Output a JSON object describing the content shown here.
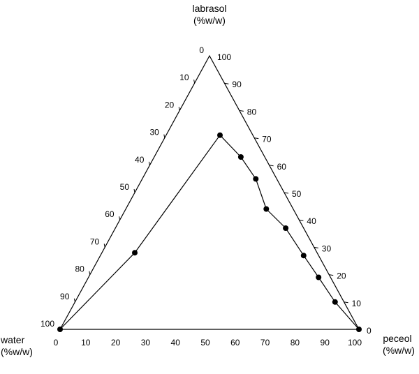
{
  "chart_data": {
    "type": "scatter",
    "subtype": "ternary",
    "title": "",
    "axes": {
      "top": {
        "component": "labrasol",
        "label_line1": "labrasol",
        "label_line2": "(%w/w)"
      },
      "left": {
        "component": "water",
        "label_line1": "water",
        "label_line2": "(%w/w)"
      },
      "right": {
        "component": "peceol",
        "label_line1": "peceol",
        "label_line2": "(%w/w)"
      }
    },
    "ticks": {
      "peceol": [
        "0",
        "10",
        "20",
        "30",
        "40",
        "50",
        "60",
        "70",
        "80",
        "90",
        "100"
      ],
      "labrasol": [
        "0",
        "10",
        "20",
        "30",
        "40",
        "50",
        "60",
        "70",
        "80",
        "90",
        "100"
      ],
      "water": [
        "0",
        "10",
        "20",
        "30",
        "40",
        "50",
        "60",
        "70",
        "80",
        "90",
        "100"
      ]
    },
    "series": [
      {
        "marker": "filled-circle",
        "line": true,
        "points": [
          {
            "peceol": 0,
            "labrasol": 0,
            "water": 100
          },
          {
            "peceol": 11,
            "labrasol": 28,
            "water": 61
          },
          {
            "peceol": 18,
            "labrasol": 71,
            "water": 11
          },
          {
            "peceol": 29,
            "labrasol": 63,
            "water": 8
          },
          {
            "peceol": 38,
            "labrasol": 55,
            "water": 7
          },
          {
            "peceol": 47,
            "labrasol": 44,
            "water": 9
          },
          {
            "peceol": 57,
            "labrasol": 37,
            "water": 6
          },
          {
            "peceol": 68,
            "labrasol": 27,
            "water": 5
          },
          {
            "peceol": 77,
            "labrasol": 19,
            "water": 4
          },
          {
            "peceol": 87,
            "labrasol": 10,
            "water": 3
          },
          {
            "peceol": 100,
            "labrasol": 0,
            "water": 0
          }
        ]
      }
    ],
    "range": [
      0,
      100
    ],
    "grid": false,
    "legend": "none"
  }
}
